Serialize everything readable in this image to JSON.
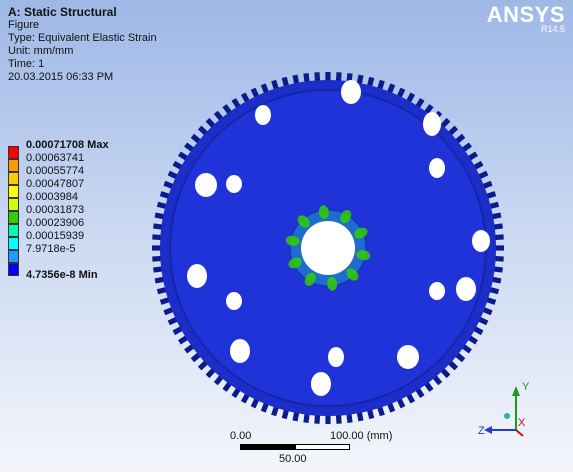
{
  "header": {
    "title": "A: Static Structural",
    "figure": "Figure",
    "type": "Type: Equivalent Elastic Strain",
    "unit": "Unit: mm/mm",
    "time": "Time: 1",
    "datetime": "20.03.2015 06:33 PM"
  },
  "brand": {
    "logo": "ANSYS",
    "version": "R14.5"
  },
  "legend": {
    "entries": [
      {
        "label": "0.00071708 Max",
        "color": "#ff0000",
        "bold": true
      },
      {
        "label": "0.00063741",
        "color": "#ff9900"
      },
      {
        "label": "0.00055774",
        "color": "#ffcc00"
      },
      {
        "label": "0.00047807",
        "color": "#ffff00"
      },
      {
        "label": "0.0003984",
        "color": "#ccff00"
      },
      {
        "label": "0.00031873",
        "color": "#33cc00"
      },
      {
        "label": "0.00023906",
        "color": "#00ffaa"
      },
      {
        "label": "0.00015939",
        "color": "#00ffff"
      },
      {
        "label": "7.9718e-5",
        "color": "#2299ff"
      },
      {
        "label": "4.7356e-8 Min",
        "color": "#0000ff",
        "bold": true
      }
    ]
  },
  "scale_bar": {
    "start": "0.00",
    "end": "100.00 (mm)",
    "mid": "50.00"
  },
  "triad": {
    "x": "X",
    "y": "Y",
    "z": "Z"
  },
  "colors": {
    "gear_body": "#1a2fd6",
    "gear_edge": "#0d1a8c",
    "strain_green": "#33cc00",
    "hole": "#ffffff"
  }
}
